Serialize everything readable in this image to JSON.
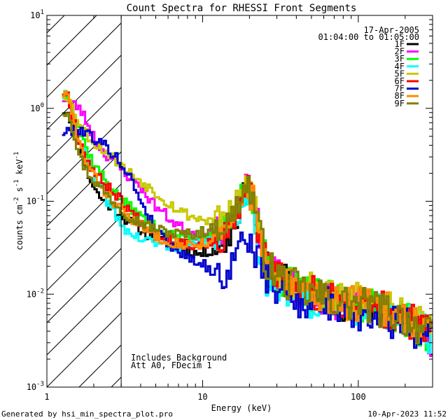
{
  "chart_data": {
    "type": "line",
    "title": "Count Spectra for RHESSI Front Segments",
    "xlabel": "Energy (keV)",
    "ylabel": "counts cm^-2 s^-1 keV^-1",
    "ylabel_parts": [
      "counts cm",
      "-2",
      " s",
      "-1",
      " keV",
      "-1"
    ],
    "xscale": "log",
    "yscale": "log",
    "xlim": [
      1,
      300
    ],
    "ylim": [
      0.001,
      10
    ],
    "x_ticks": [
      {
        "value": 1,
        "label": "1"
      },
      {
        "value": 10,
        "label": "10"
      },
      {
        "value": 100,
        "label": "100"
      }
    ],
    "y_ticks": [
      {
        "value": 0.001,
        "base": "10",
        "exp": "-3"
      },
      {
        "value": 0.01,
        "base": "10",
        "exp": "-2"
      },
      {
        "value": 0.1,
        "base": "10",
        "exp": "-1"
      },
      {
        "value": 1,
        "base": "10",
        "exp": "0"
      },
      {
        "value": 10,
        "base": "10",
        "exp": "1"
      }
    ],
    "shaded_region_max_keV": 3,
    "date": "17-Apr-2005",
    "time_range": "01:04:00 to 01:05:00",
    "notes": [
      "Includes Background",
      "Att A0, FDecim 1"
    ],
    "series": [
      {
        "name": "1F",
        "color": "#000000",
        "values": [
          0.95,
          0.93,
          0.6,
          0.4,
          0.22,
          0.16,
          0.12,
          0.1,
          0.09,
          0.08,
          0.07,
          0.062,
          0.055,
          0.05,
          0.045,
          0.042,
          0.04,
          0.036,
          0.034,
          0.034,
          0.03,
          0.03,
          0.028,
          0.027,
          0.028,
          0.03,
          0.032,
          0.033,
          0.04,
          0.058,
          0.095,
          0.14,
          0.09,
          0.035,
          0.022,
          0.017,
          0.015,
          0.014,
          0.013,
          0.012,
          0.011,
          0.0105,
          0.01,
          0.0095,
          0.009,
          0.0088,
          0.0085,
          0.0082,
          0.008,
          0.0078,
          0.0076,
          0.0074,
          0.0072,
          0.007,
          0.0067,
          0.0064,
          0.006,
          0.0056,
          0.0052,
          0.0048,
          0.0043,
          0.0038,
          0.0032
        ],
        "seed": 11
      },
      {
        "name": "2F",
        "color": "#ff00ff",
        "values": [
          1.3,
          1.2,
          1.1,
          1.0,
          0.75,
          0.55,
          0.42,
          0.33,
          0.3,
          0.26,
          0.22,
          0.19,
          0.17,
          0.15,
          0.12,
          0.1,
          0.085,
          0.075,
          0.065,
          0.058,
          0.052,
          0.048,
          0.045,
          0.043,
          0.042,
          0.045,
          0.048,
          0.05,
          0.055,
          0.075,
          0.105,
          0.15,
          0.1,
          0.042,
          0.024,
          0.018,
          0.016,
          0.014,
          0.013,
          0.012,
          0.011,
          0.0105,
          0.01,
          0.0095,
          0.009,
          0.0088,
          0.0085,
          0.0082,
          0.008,
          0.0078,
          0.0076,
          0.0074,
          0.0072,
          0.007,
          0.0067,
          0.0064,
          0.006,
          0.0056,
          0.0052,
          0.0048,
          0.0043,
          0.0038,
          0.0032
        ],
        "seed": 23
      },
      {
        "name": "3F",
        "color": "#00ff00",
        "values": [
          1.55,
          1.4,
          0.9,
          0.6,
          0.38,
          0.28,
          0.22,
          0.18,
          0.15,
          0.12,
          0.1,
          0.09,
          0.08,
          0.07,
          0.062,
          0.056,
          0.05,
          0.047,
          0.044,
          0.042,
          0.04,
          0.04,
          0.041,
          0.042,
          0.044,
          0.046,
          0.048,
          0.05,
          0.056,
          0.075,
          0.11,
          0.16,
          0.11,
          0.045,
          0.026,
          0.019,
          0.016,
          0.014,
          0.013,
          0.012,
          0.011,
          0.0105,
          0.01,
          0.0095,
          0.009,
          0.0088,
          0.0085,
          0.0082,
          0.008,
          0.0078,
          0.0076,
          0.0074,
          0.0072,
          0.007,
          0.0067,
          0.0064,
          0.006,
          0.0056,
          0.0052,
          0.0048,
          0.0043,
          0.0038,
          0.0032
        ],
        "seed": 37
      },
      {
        "name": "4F",
        "color": "#00ffff",
        "values": [
          1.4,
          1.3,
          0.8,
          0.45,
          0.28,
          0.2,
          0.15,
          0.12,
          0.09,
          0.07,
          0.055,
          0.048,
          0.042,
          0.04,
          0.038,
          0.036,
          0.035,
          0.034,
          0.033,
          0.033,
          0.033,
          0.034,
          0.034,
          0.035,
          0.036,
          0.038,
          0.042,
          0.045,
          0.05,
          0.065,
          0.095,
          0.13,
          0.085,
          0.03,
          0.016,
          0.012,
          0.011,
          0.01,
          0.0098,
          0.0095,
          0.009,
          0.0088,
          0.0086,
          0.0084,
          0.0082,
          0.008,
          0.0078,
          0.0076,
          0.0074,
          0.0072,
          0.007,
          0.0068,
          0.0066,
          0.0064,
          0.0062,
          0.006,
          0.0057,
          0.0054,
          0.0051,
          0.0048,
          0.0043,
          0.0038,
          0.0032
        ],
        "seed": 41
      },
      {
        "name": "5F",
        "color": "#c8c800",
        "values": [
          1.45,
          1.35,
          0.95,
          0.7,
          0.55,
          0.45,
          0.4,
          0.36,
          0.32,
          0.28,
          0.24,
          0.21,
          0.19,
          0.17,
          0.15,
          0.135,
          0.12,
          0.105,
          0.095,
          0.085,
          0.078,
          0.072,
          0.068,
          0.065,
          0.063,
          0.062,
          0.064,
          0.067,
          0.07,
          0.09,
          0.12,
          0.16,
          0.12,
          0.05,
          0.028,
          0.02,
          0.017,
          0.015,
          0.014,
          0.013,
          0.012,
          0.0115,
          0.011,
          0.0105,
          0.01,
          0.0098,
          0.0096,
          0.0094,
          0.0092,
          0.009,
          0.0088,
          0.0086,
          0.0083,
          0.008,
          0.0076,
          0.0072,
          0.0068,
          0.0064,
          0.006,
          0.0055,
          0.005,
          0.0044,
          0.0038
        ],
        "seed": 53
      },
      {
        "name": "6F",
        "color": "#ff0000",
        "values": [
          1.5,
          1.4,
          0.75,
          0.45,
          0.3,
          0.23,
          0.18,
          0.16,
          0.14,
          0.12,
          0.1,
          0.085,
          0.072,
          0.062,
          0.055,
          0.05,
          0.046,
          0.043,
          0.04,
          0.038,
          0.036,
          0.035,
          0.034,
          0.034,
          0.035,
          0.036,
          0.038,
          0.04,
          0.046,
          0.065,
          0.1,
          0.15,
          0.1,
          0.04,
          0.022,
          0.017,
          0.015,
          0.014,
          0.013,
          0.012,
          0.011,
          0.0105,
          0.01,
          0.0095,
          0.009,
          0.0088,
          0.0085,
          0.0082,
          0.008,
          0.0078,
          0.0076,
          0.0074,
          0.0072,
          0.007,
          0.0067,
          0.0064,
          0.006,
          0.0056,
          0.0052,
          0.0048,
          0.0043,
          0.0038,
          0.0032
        ],
        "seed": 67
      },
      {
        "name": "7F",
        "color": "#0000cc",
        "values": [
          0.55,
          0.55,
          0.6,
          0.6,
          0.55,
          0.5,
          0.45,
          0.4,
          0.36,
          0.3,
          0.25,
          0.2,
          0.15,
          0.11,
          0.08,
          0.06,
          0.048,
          0.04,
          0.035,
          0.031,
          0.028,
          0.026,
          0.024,
          0.022,
          0.02,
          0.018,
          0.016,
          0.015,
          0.018,
          0.026,
          0.036,
          0.04,
          0.032,
          0.022,
          0.016,
          0.013,
          0.011,
          0.01,
          0.0095,
          0.009,
          0.0085,
          0.0082,
          0.008,
          0.0078,
          0.0076,
          0.0074,
          0.0072,
          0.007,
          0.0068,
          0.0066,
          0.0064,
          0.0062,
          0.006,
          0.0058,
          0.0056,
          0.0053,
          0.005,
          0.0047,
          0.0044,
          0.0041,
          0.0038,
          0.0034,
          0.003
        ],
        "seed": 79
      },
      {
        "name": "8F",
        "color": "#ff8c00",
        "values": [
          1.45,
          1.35,
          0.7,
          0.4,
          0.26,
          0.2,
          0.16,
          0.13,
          0.11,
          0.095,
          0.08,
          0.07,
          0.062,
          0.055,
          0.05,
          0.046,
          0.042,
          0.04,
          0.038,
          0.036,
          0.035,
          0.034,
          0.034,
          0.035,
          0.036,
          0.038,
          0.04,
          0.043,
          0.05,
          0.07,
          0.105,
          0.15,
          0.105,
          0.042,
          0.023,
          0.017,
          0.015,
          0.014,
          0.013,
          0.012,
          0.011,
          0.0105,
          0.01,
          0.0096,
          0.0092,
          0.009,
          0.0087,
          0.0084,
          0.0082,
          0.008,
          0.0078,
          0.0076,
          0.0074,
          0.0072,
          0.007,
          0.0067,
          0.0064,
          0.006,
          0.0056,
          0.0052,
          0.0047,
          0.0042,
          0.0036
        ],
        "seed": 83
      },
      {
        "name": "9F",
        "color": "#808000",
        "values": [
          0.9,
          0.95,
          0.55,
          0.3,
          0.22,
          0.18,
          0.15,
          0.13,
          0.11,
          0.095,
          0.082,
          0.072,
          0.065,
          0.06,
          0.056,
          0.053,
          0.05,
          0.048,
          0.046,
          0.045,
          0.044,
          0.044,
          0.045,
          0.046,
          0.048,
          0.05,
          0.052,
          0.055,
          0.06,
          0.08,
          0.115,
          0.16,
          0.11,
          0.045,
          0.025,
          0.018,
          0.016,
          0.014,
          0.013,
          0.012,
          0.011,
          0.0105,
          0.01,
          0.0095,
          0.009,
          0.0088,
          0.0085,
          0.0082,
          0.008,
          0.0078,
          0.0076,
          0.0074,
          0.0072,
          0.007,
          0.0067,
          0.0064,
          0.006,
          0.0056,
          0.0052,
          0.0048,
          0.0043,
          0.0038,
          0.0032
        ],
        "seed": 97
      }
    ]
  },
  "footer": {
    "generated_by": "Generated by hsi_min_spectra_plot.pro",
    "timestamp": "10-Apr-2023 11:52"
  }
}
